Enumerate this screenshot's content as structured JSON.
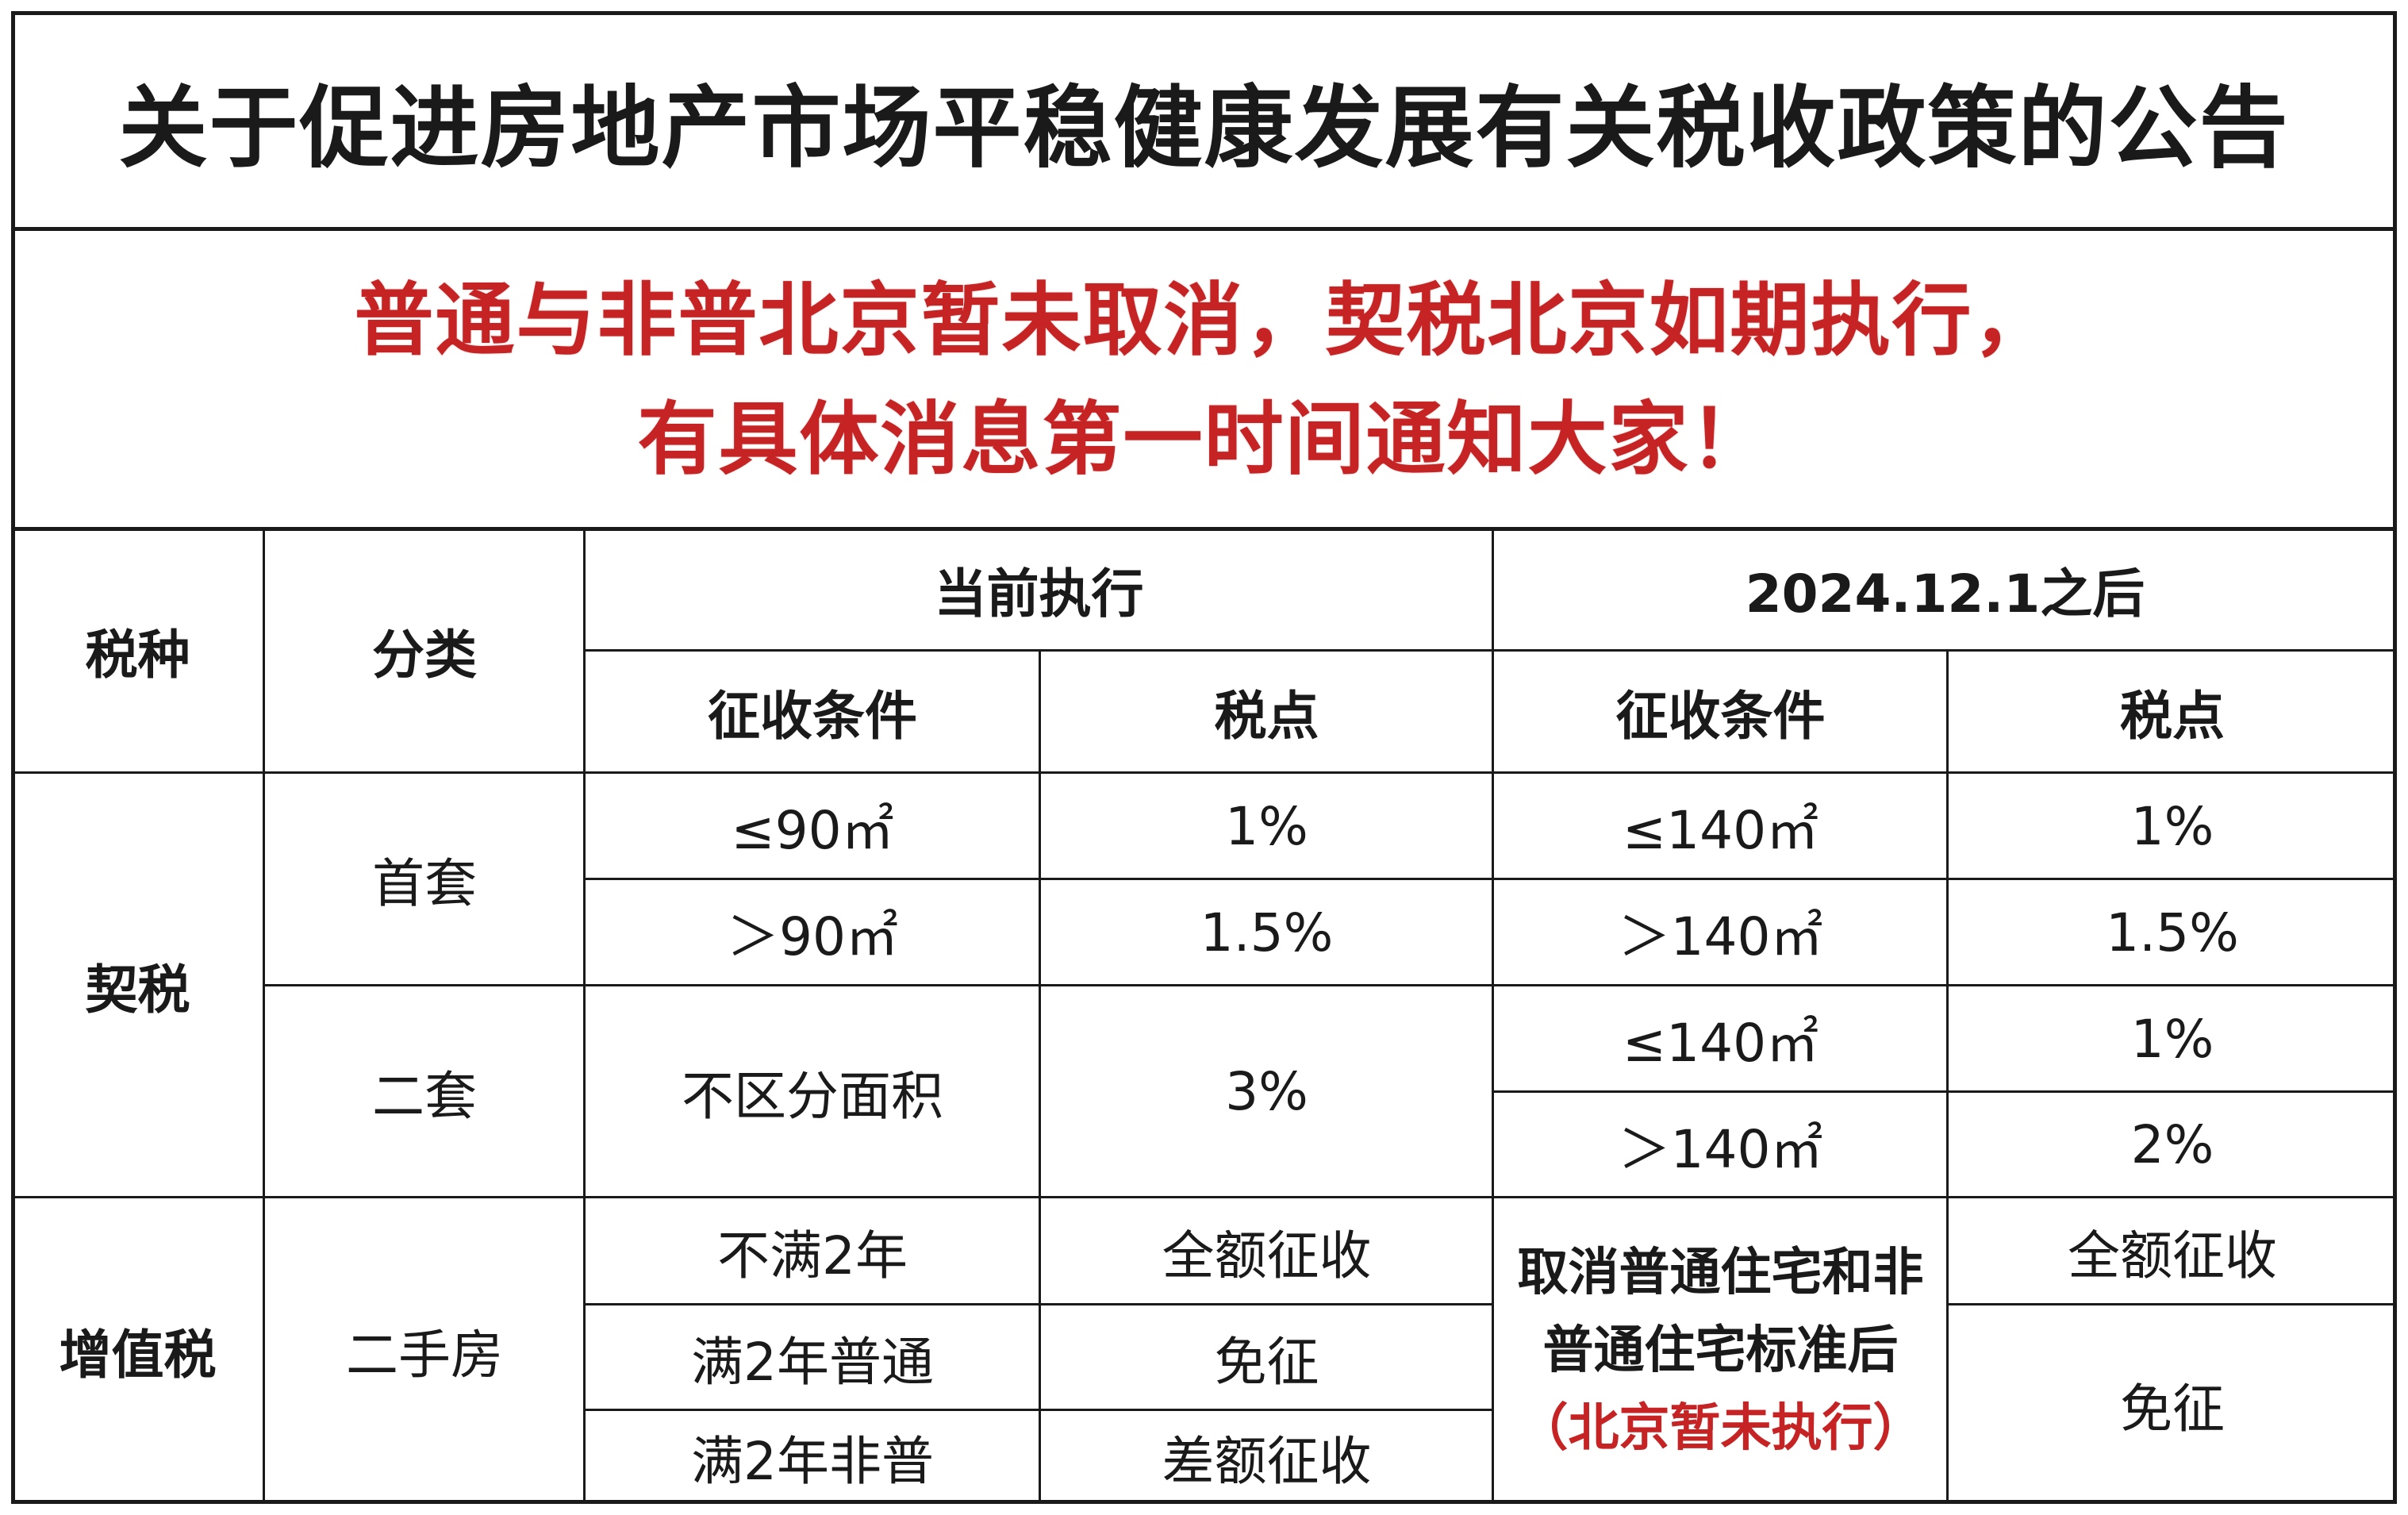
{
  "title": "关于促进房地产市场平稳健康发展有关税收政策的公告",
  "notice": {
    "line1": "普通与非普北京暂未取消，契税北京如期执行，",
    "line2": "有具体消息第一时间通知大家！"
  },
  "table": {
    "headers": {
      "tax_type": "税种",
      "category": "分类",
      "current": "当前执行",
      "after": "2024.12.1之后",
      "condition": "征收条件",
      "rate": "税点"
    },
    "deed_tax": {
      "label": "契税",
      "first_home": {
        "label": "首套",
        "current_rows": [
          {
            "condition": "≤90㎡",
            "rate": "1%"
          },
          {
            "condition": "＞90㎡",
            "rate": "1.5%"
          }
        ],
        "after_rows": [
          {
            "condition": "≤140㎡",
            "rate": "1%"
          },
          {
            "condition": "＞140㎡",
            "rate": "1.5%"
          }
        ]
      },
      "second_home": {
        "label": "二套",
        "current_condition": "不区分面积",
        "current_rate": "3%",
        "after_rows": [
          {
            "condition": "≤140㎡",
            "rate": "1%"
          },
          {
            "condition": "＞140㎡",
            "rate": "2%"
          }
        ]
      }
    },
    "vat": {
      "label": "增值税",
      "category": "二手房",
      "current_rows": [
        {
          "condition": "不满2年",
          "rate": "全额征收"
        },
        {
          "condition": "满2年普通",
          "rate": "免征"
        },
        {
          "condition": "满2年非普",
          "rate": "差额征收"
        }
      ],
      "after_condition_line1": "取消普通住宅和非",
      "after_condition_line2": "普通住宅标准后",
      "after_condition_note": "（北京暂未执行）",
      "after_rate_1": "全额征收",
      "after_rate_2": "免征"
    }
  }
}
